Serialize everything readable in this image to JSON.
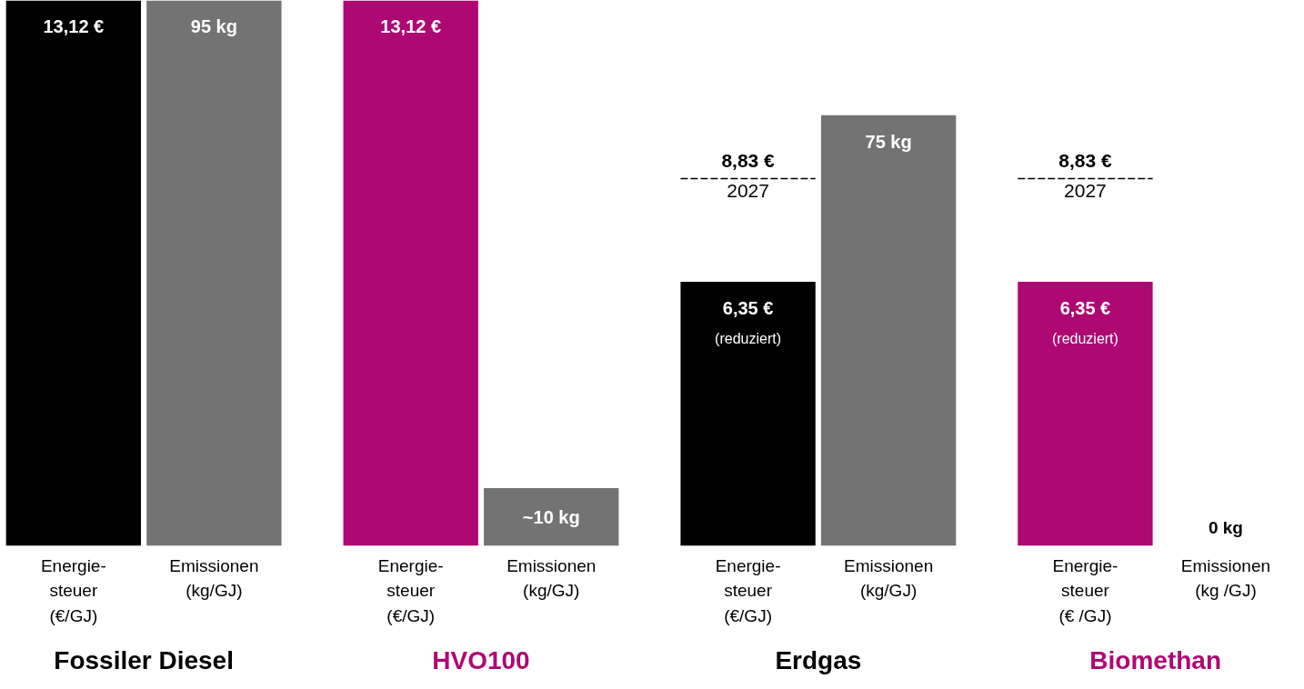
{
  "chart_data": {
    "type": "bar",
    "categories": [
      "Energie-\nsteuer\n(€/GJ)",
      "Emissionen\n(kg/GJ)",
      "Energie-\nsteuer\n(€/GJ)",
      "Emissionen\n(kg/GJ)",
      "Energie-\nsteuer\n(€/GJ)",
      "Emissionen\n(kg/GJ)",
      "Energie-\nsteuer\n(€ /GJ)",
      "Emissionen\n(kg /GJ)"
    ],
    "series": [
      {
        "colors": [
          "#000000",
          null,
          "#ae0872",
          null,
          "#000000",
          null,
          "#ae0872",
          null
        ],
        "values": [
          13.12,
          null,
          13.12,
          null,
          6.35,
          null,
          6.35,
          null
        ],
        "value_labels": [
          "13,12 €",
          null,
          "13,12 €",
          null,
          "6,35 €\n(reduziert)",
          null,
          "6,35 €\n(reduziert)",
          null
        ]
      },
      {
        "axis": "y2",
        "color": "#737373",
        "values": [
          null,
          95,
          null,
          10,
          null,
          75,
          null,
          0
        ],
        "value_labels": [
          null,
          "95 kg",
          null,
          "~10 kg",
          null,
          "75 kg",
          null,
          "0 kg"
        ]
      }
    ],
    "ref_lines": [
      {
        "axis": "y",
        "value": 8.83,
        "label": "8,83 €\n2027",
        "color": "#000000",
        "line_style": "dashed"
      }
    ],
    "annotations": [
      "Fossiler Diesel",
      "HVO100",
      "Erdgas",
      "Biomethan"
    ],
    "grid": false
  }
}
